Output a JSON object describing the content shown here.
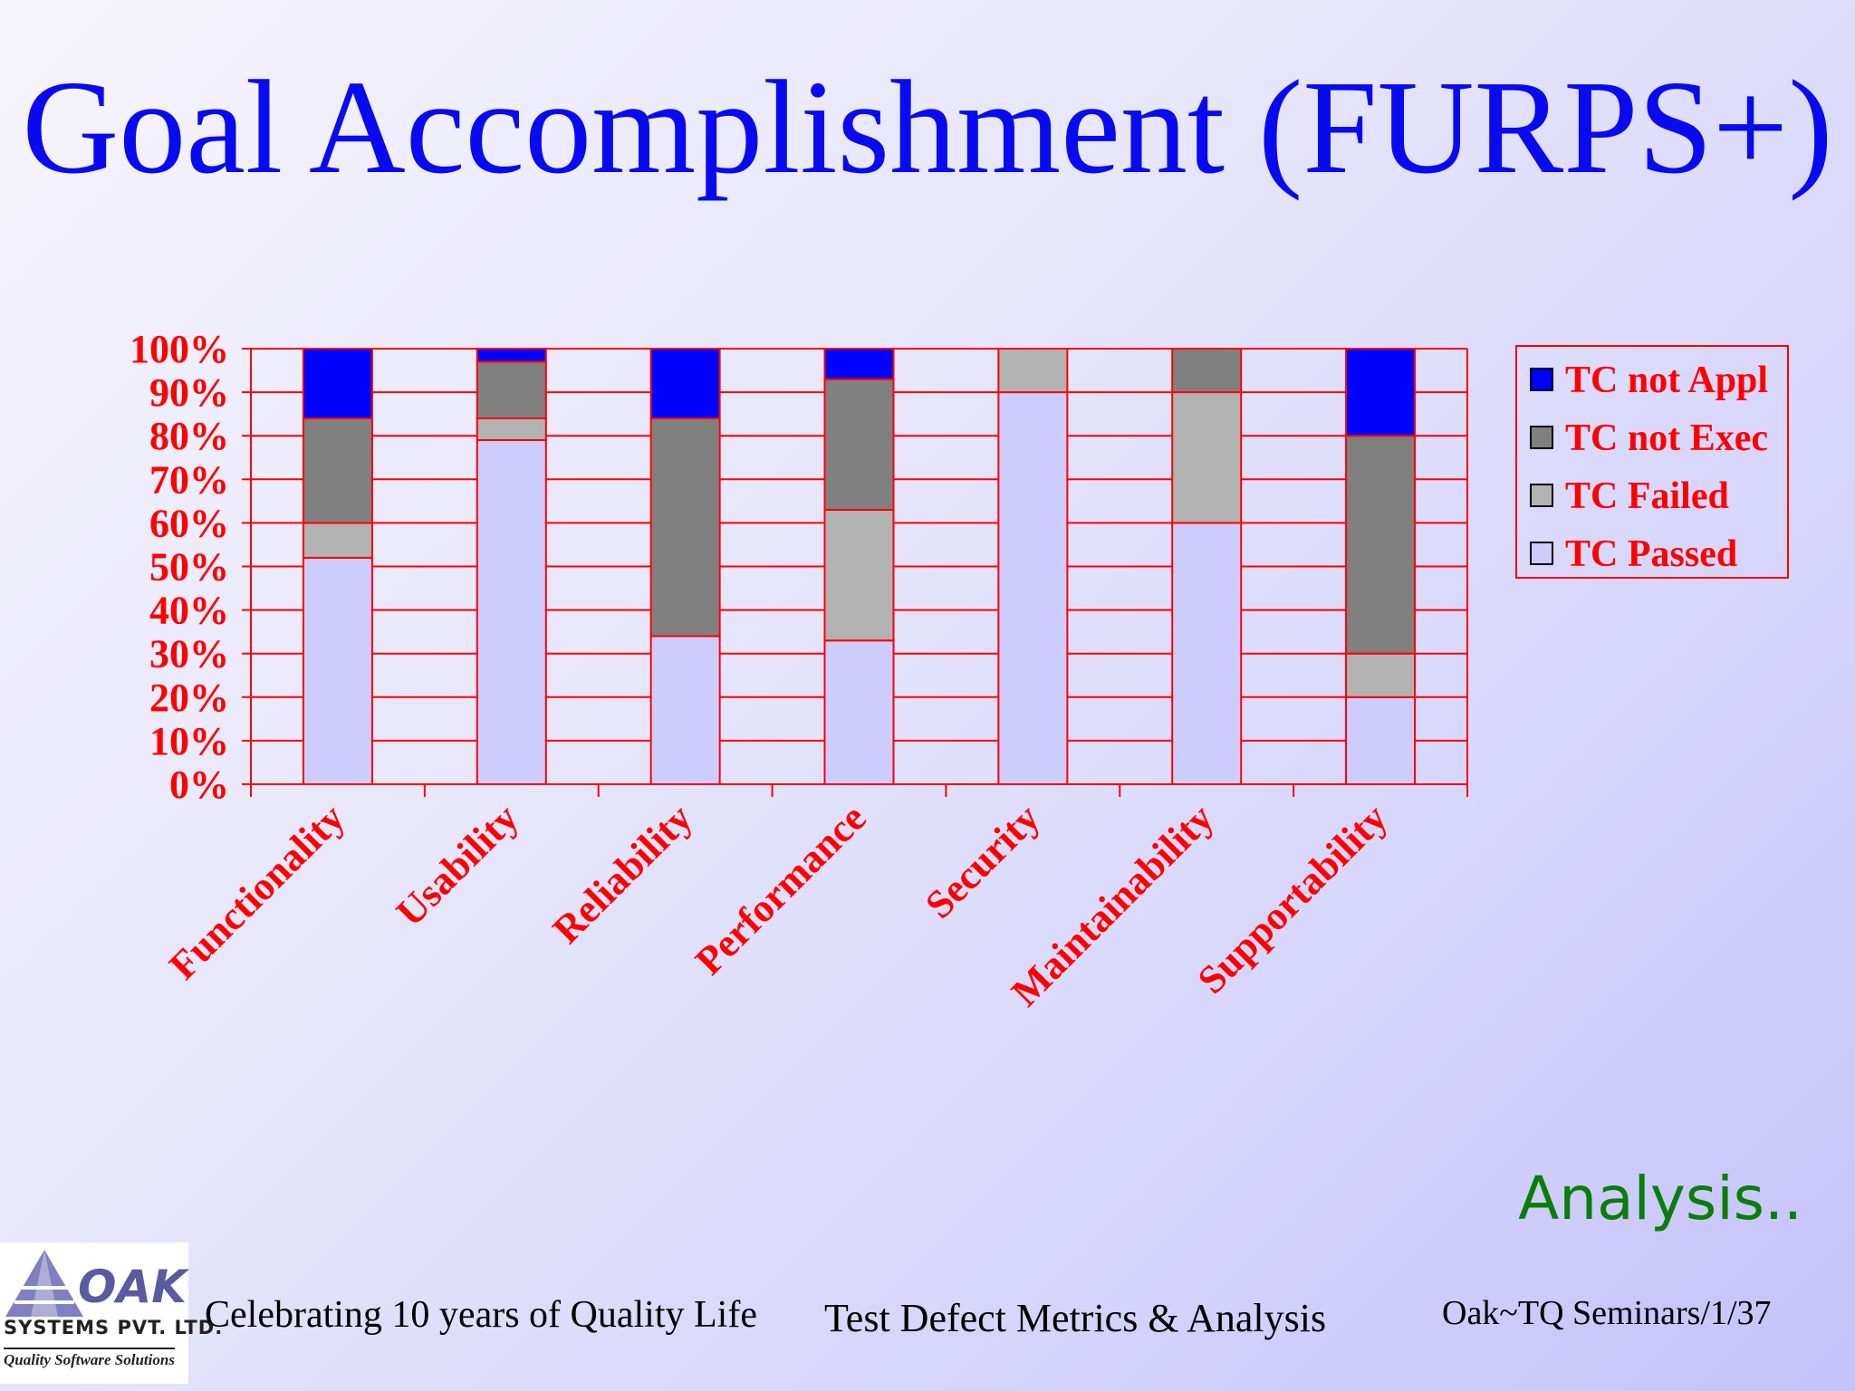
{
  "slide": {
    "title": "Goal Accomplishment (FURPS+)",
    "analysis_label": "Analysis..",
    "footer_left": "Celebrating 10 years of Quality Life",
    "footer_center": "Test Defect Metrics & Analysis",
    "footer_right": "Oak~TQ Seminars/1/37"
  },
  "logo": {
    "name": "OAK",
    "company": "SYSTEMS PVT. LTD.",
    "tagline": "Quality Software Solutions"
  },
  "colors": {
    "title": "#0a0af0",
    "axis_text": "#ff0000",
    "grid": "#ff0000",
    "analysis": "#0a7d0a"
  },
  "chart_data": {
    "type": "bar",
    "stacked": true,
    "percent": true,
    "categories": [
      "Functionality",
      "Usability",
      "Reliability",
      "Performance",
      "Security",
      "Maintainability",
      "Supportability"
    ],
    "series": [
      {
        "name": "TC Passed",
        "color": "#ccccff",
        "values": [
          52,
          79,
          34,
          33,
          90,
          60,
          20
        ]
      },
      {
        "name": "TC Failed",
        "color": "#b2b2b2",
        "values": [
          8,
          5,
          0,
          30,
          10,
          30,
          10
        ]
      },
      {
        "name": "TC not Exec",
        "color": "#808080",
        "values": [
          24,
          13,
          50,
          30,
          0,
          10,
          50
        ]
      },
      {
        "name": "TC not Appl",
        "color": "#0000ff",
        "values": [
          16,
          3,
          16,
          7,
          0,
          0,
          20
        ]
      }
    ],
    "legend_order": [
      "TC not Appl",
      "TC not Exec",
      "TC Failed",
      "TC Passed"
    ],
    "yticks": [
      "0%",
      "10%",
      "20%",
      "30%",
      "40%",
      "50%",
      "60%",
      "70%",
      "80%",
      "90%",
      "100%"
    ],
    "ylim": [
      0,
      100
    ],
    "grid": true,
    "legend_position": "right"
  }
}
